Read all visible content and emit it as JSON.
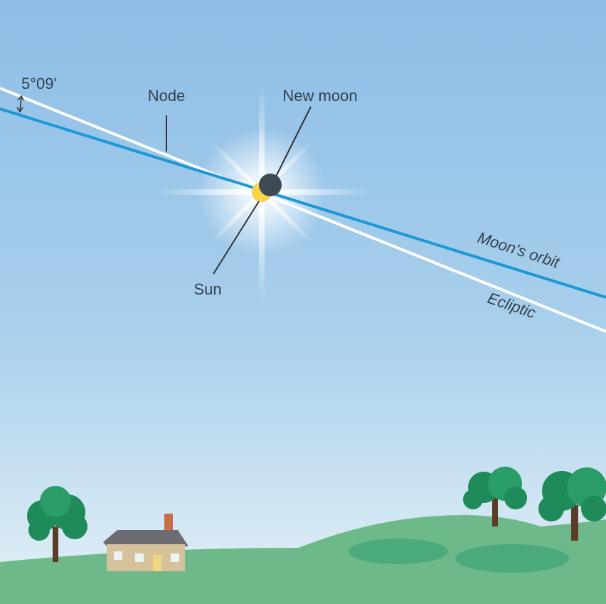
{
  "labels": {
    "angle": "5°09'",
    "node": "Node",
    "new_moon": "New moon",
    "sun": "Sun",
    "moons_orbit": "Moon's orbit",
    "ecliptic": "Ecliptic"
  }
}
